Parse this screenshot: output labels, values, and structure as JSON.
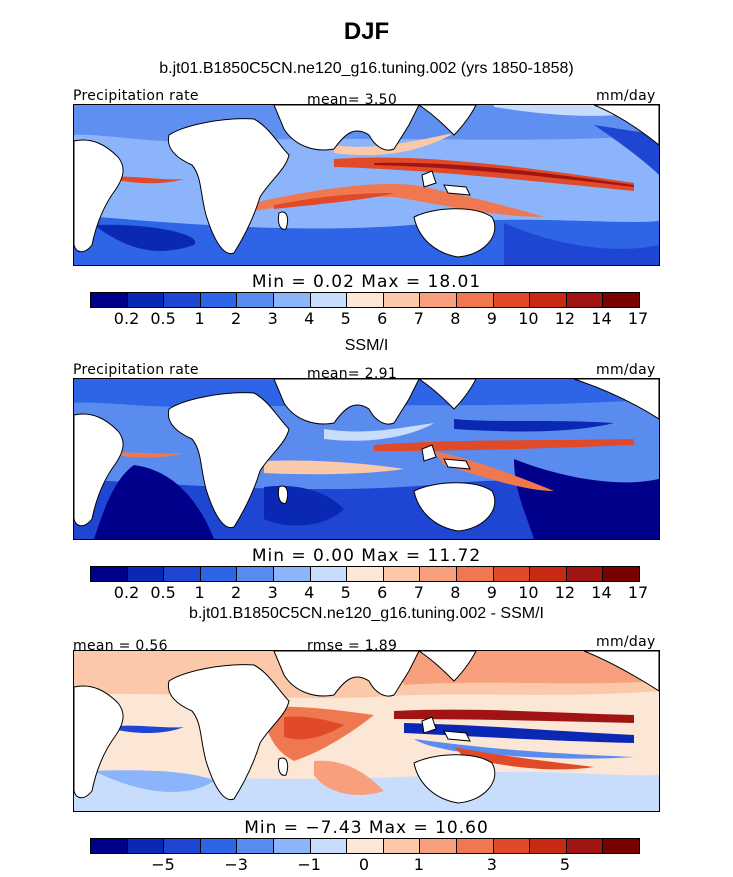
{
  "page": {
    "title": "DJF"
  },
  "panels": [
    {
      "subtitle": "b.jt01.B1850C5CN.ne120_g16.tuning.002 (yrs 1850-1858)",
      "left_label": "Precipitation rate",
      "center_label": "mean=    3.50",
      "right_label": "mm/day",
      "minmax": "Min =     0.02  Max =   18.01",
      "colorbar_labels": [
        "0.2",
        "0.5",
        "1",
        "2",
        "3",
        "4",
        "5",
        "6",
        "7",
        "8",
        "9",
        "10",
        "12",
        "14",
        "17"
      ],
      "colors": [
        "#00008b",
        "#0a28b4",
        "#1e46d2",
        "#2e64e6",
        "#5a8cf0",
        "#8cb4fa",
        "#c8dcfc",
        "#fce6d6",
        "#fcc8aa",
        "#f8a07e",
        "#f07850",
        "#e04a28",
        "#c82814",
        "#a01414",
        "#7a0000"
      ]
    },
    {
      "subtitle": "SSM/I",
      "left_label": "Precipitation rate",
      "center_label": "mean=    2.91",
      "right_label": "mm/day",
      "minmax": "Min =     0.00  Max =   11.72",
      "colorbar_labels": [
        "0.2",
        "0.5",
        "1",
        "2",
        "3",
        "4",
        "5",
        "6",
        "7",
        "8",
        "9",
        "10",
        "12",
        "14",
        "17"
      ],
      "colors": [
        "#00008b",
        "#0a28b4",
        "#1e46d2",
        "#2e64e6",
        "#5a8cf0",
        "#8cb4fa",
        "#c8dcfc",
        "#fce6d6",
        "#fcc8aa",
        "#f8a07e",
        "#f07850",
        "#e04a28",
        "#c82814",
        "#a01414",
        "#7a0000"
      ]
    },
    {
      "subtitle": "b.jt01.B1850C5CN.ne120_g16.tuning.002 - SSM/I",
      "left_label": "mean =     0.56",
      "center_label": "rmse =     1.89",
      "right_label": "mm/day",
      "minmax": "Min =   −7.43  Max =   10.60",
      "colorbar_labels": [
        "−5",
        "−3",
        "−1",
        "0",
        "1",
        "3",
        "5"
      ],
      "colors": [
        "#00008b",
        "#0a28b4",
        "#1e46d2",
        "#2e64e6",
        "#5a8cf0",
        "#8cb4fa",
        "#c8dcfc",
        "#fce6d6",
        "#fcc8aa",
        "#f8a07e",
        "#f07850",
        "#e04a28",
        "#c82814",
        "#a01414",
        "#7a0000"
      ]
    }
  ]
}
